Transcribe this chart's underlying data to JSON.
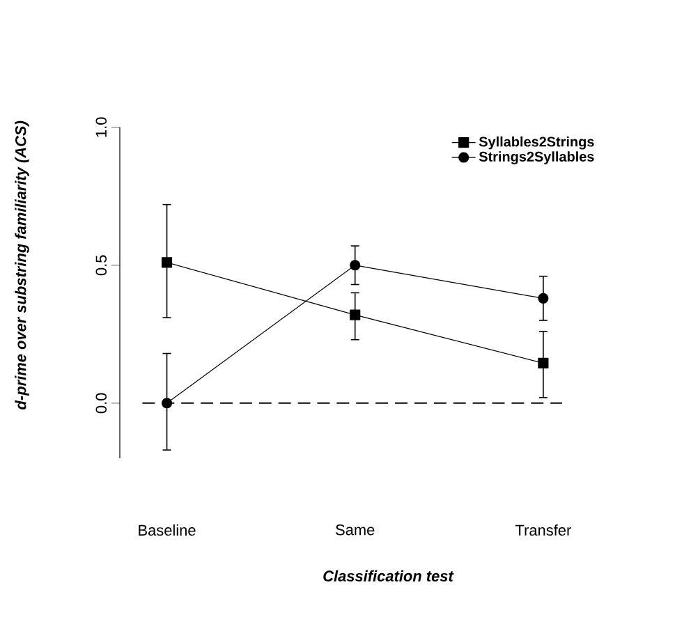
{
  "chart_data": {
    "type": "line",
    "xlabel": "Classification test",
    "ylabel": "d-prime over substring familiarity (ACS)",
    "categories": [
      "Baseline",
      "Same",
      "Transfer"
    ],
    "ylim": [
      -0.2,
      1.0
    ],
    "yticks": [
      {
        "value": 0,
        "label": "0.0"
      },
      {
        "value": 0.5,
        "label": "0.5"
      },
      {
        "value": 1,
        "label": "1.0"
      }
    ],
    "legend": "top right",
    "grid": false,
    "line_style": "solid",
    "series": [
      {
        "name": "Syllables2Strings",
        "color": "#000000",
        "marker": "square",
        "values": [
          0.51,
          0.32,
          0.145
        ],
        "errors": [
          [
            0.31,
            0.72
          ],
          [
            0.23,
            0.4
          ],
          [
            0.02,
            0.26
          ]
        ]
      },
      {
        "name": "Strings2Syllables",
        "color": "#000000",
        "marker": "circle",
        "values": [
          0.0,
          0.5,
          0.38
        ],
        "errors": [
          [
            -0.17,
            0.18
          ],
          [
            0.43,
            0.57
          ],
          [
            0.3,
            0.46
          ]
        ]
      }
    ],
    "ref_lines": [
      {
        "axis": "y",
        "value": 0,
        "line_style": "dashed",
        "color": "#000000"
      }
    ]
  }
}
